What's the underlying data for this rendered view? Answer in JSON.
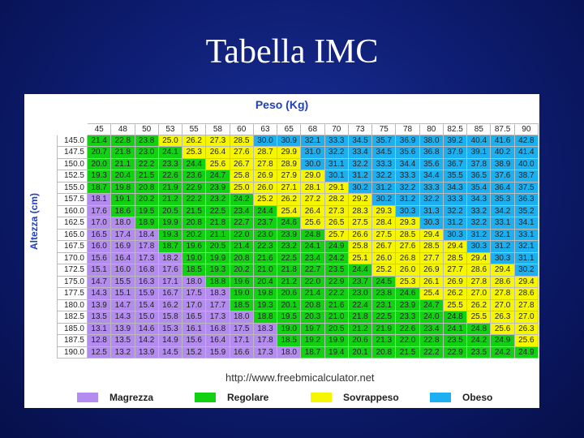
{
  "title": "Tabella IMC",
  "table": {
    "x_label": "Peso (Kg)",
    "y_label": "Altezza (cm)",
    "columns": [
      "45",
      "48",
      "50",
      "53",
      "55",
      "58",
      "60",
      "63",
      "65",
      "68",
      "70",
      "73",
      "75",
      "78",
      "80",
      "82.5",
      "85",
      "87.5",
      "90"
    ],
    "rows": [
      {
        "height": "145.0",
        "values": [
          "21.4",
          "22.8",
          "23.8",
          "25.0",
          "26.2",
          "27.3",
          "28.5",
          "30.0",
          "30.9",
          "32.1",
          "33.3",
          "34.5",
          "35.7",
          "36.9",
          "38.0",
          "39.2",
          "40.4",
          "41.6",
          "42.8"
        ],
        "classes": [
          1,
          1,
          1,
          2,
          2,
          2,
          2,
          3,
          3,
          3,
          3,
          3,
          3,
          3,
          3,
          3,
          3,
          3,
          3
        ]
      },
      {
        "height": "147.5",
        "values": [
          "20.7",
          "21.8",
          "23.0",
          "24.1",
          "25.3",
          "26.4",
          "27.6",
          "28.7",
          "29.9",
          "31.0",
          "32.2",
          "33.4",
          "34.5",
          "35.6",
          "36.8",
          "37.9",
          "39.1",
          "40.2",
          "41.4"
        ],
        "classes": [
          1,
          1,
          1,
          1,
          2,
          2,
          2,
          2,
          2,
          3,
          3,
          3,
          3,
          3,
          3,
          3,
          3,
          3,
          3
        ]
      },
      {
        "height": "150.0",
        "values": [
          "20.0",
          "21.1",
          "22.2",
          "23.3",
          "24.4",
          "25.6",
          "26.7",
          "27.8",
          "28.9",
          "30.0",
          "31.1",
          "32.2",
          "33.3",
          "34.4",
          "35.6",
          "36.7",
          "37.8",
          "38.9",
          "40.0"
        ],
        "classes": [
          1,
          1,
          1,
          1,
          1,
          2,
          2,
          2,
          2,
          3,
          3,
          3,
          3,
          3,
          3,
          3,
          3,
          3,
          3
        ]
      },
      {
        "height": "152.5",
        "values": [
          "19.3",
          "20.4",
          "21.5",
          "22.6",
          "23.6",
          "24.7",
          "25.8",
          "26.9",
          "27.9",
          "29.0",
          "30.1",
          "31.2",
          "32.2",
          "33.3",
          "34.4",
          "35.5",
          "36.5",
          "37.6",
          "38.7"
        ],
        "classes": [
          1,
          1,
          1,
          1,
          1,
          1,
          2,
          2,
          2,
          2,
          3,
          3,
          3,
          3,
          3,
          3,
          3,
          3,
          3
        ]
      },
      {
        "height": "155.0",
        "values": [
          "18.7",
          "19.8",
          "20.8",
          "21.9",
          "22.9",
          "23.9",
          "25.0",
          "26.0",
          "27.1",
          "28.1",
          "29.1",
          "30.2",
          "31.2",
          "32.2",
          "33.3",
          "34.3",
          "35.4",
          "36.4",
          "37.5"
        ],
        "classes": [
          1,
          1,
          1,
          1,
          1,
          1,
          2,
          2,
          2,
          2,
          2,
          3,
          3,
          3,
          3,
          3,
          3,
          3,
          3
        ]
      },
      {
        "height": "157.5",
        "values": [
          "18.1",
          "19.1",
          "20.2",
          "21.2",
          "22.2",
          "23.2",
          "24.2",
          "25.2",
          "26.2",
          "27.2",
          "28.2",
          "29.2",
          "30.2",
          "31.2",
          "32.2",
          "33.3",
          "34.3",
          "35.3",
          "36.3"
        ],
        "classes": [
          0,
          1,
          1,
          1,
          1,
          1,
          1,
          2,
          2,
          2,
          2,
          2,
          3,
          3,
          3,
          3,
          3,
          3,
          3
        ]
      },
      {
        "height": "160.0",
        "values": [
          "17.6",
          "18.6",
          "19.5",
          "20.5",
          "21.5",
          "22.5",
          "23.4",
          "24.4",
          "25.4",
          "26.4",
          "27.3",
          "28.3",
          "29.3",
          "30.3",
          "31.3",
          "32.2",
          "33.2",
          "34.2",
          "35.2"
        ],
        "classes": [
          0,
          1,
          1,
          1,
          1,
          1,
          1,
          1,
          2,
          2,
          2,
          2,
          2,
          3,
          3,
          3,
          3,
          3,
          3
        ]
      },
      {
        "height": "162.5",
        "values": [
          "17.0",
          "18.0",
          "18.9",
          "19.9",
          "20.8",
          "21.8",
          "22.7",
          "23.7",
          "24.6",
          "25.6",
          "26.5",
          "27.5",
          "28.4",
          "29.3",
          "30.3",
          "31.2",
          "32.2",
          "33.1",
          "34.1"
        ],
        "classes": [
          0,
          0,
          1,
          1,
          1,
          1,
          1,
          1,
          1,
          2,
          2,
          2,
          2,
          2,
          3,
          3,
          3,
          3,
          3
        ]
      },
      {
        "height": "165.0",
        "values": [
          "16.5",
          "17.4",
          "18.4",
          "19.3",
          "20.2",
          "21.1",
          "22.0",
          "23.0",
          "23.9",
          "24.8",
          "25.7",
          "26.6",
          "27.5",
          "28.5",
          "29.4",
          "30.3",
          "31.2",
          "32.1",
          "33.1"
        ],
        "classes": [
          0,
          0,
          0,
          1,
          1,
          1,
          1,
          1,
          1,
          1,
          2,
          2,
          2,
          2,
          2,
          3,
          3,
          3,
          3
        ]
      },
      {
        "height": "167.5",
        "values": [
          "16.0",
          "16.9",
          "17.8",
          "18.7",
          "19.6",
          "20.5",
          "21.4",
          "22.3",
          "23.2",
          "24.1",
          "24.9",
          "25.8",
          "26.7",
          "27.6",
          "28.5",
          "29.4",
          "30.3",
          "31.2",
          "32.1"
        ],
        "classes": [
          0,
          0,
          0,
          1,
          1,
          1,
          1,
          1,
          1,
          1,
          1,
          2,
          2,
          2,
          2,
          2,
          3,
          3,
          3
        ]
      },
      {
        "height": "170.0",
        "values": [
          "15.6",
          "16.4",
          "17.3",
          "18.2",
          "19.0",
          "19.9",
          "20.8",
          "21.6",
          "22.5",
          "23.4",
          "24.2",
          "25.1",
          "26.0",
          "26.8",
          "27.7",
          "28.5",
          "29.4",
          "30.3",
          "31.1"
        ],
        "classes": [
          0,
          0,
          0,
          0,
          1,
          1,
          1,
          1,
          1,
          1,
          1,
          2,
          2,
          2,
          2,
          2,
          2,
          3,
          3
        ]
      },
      {
        "height": "172.5",
        "values": [
          "15.1",
          "16.0",
          "16.8",
          "17.6",
          "18.5",
          "19.3",
          "20.2",
          "21.0",
          "21.8",
          "22.7",
          "23.5",
          "24.4",
          "25.2",
          "26.0",
          "26.9",
          "27.7",
          "28.6",
          "29.4",
          "30.2"
        ],
        "classes": [
          0,
          0,
          0,
          0,
          1,
          1,
          1,
          1,
          1,
          1,
          1,
          1,
          2,
          2,
          2,
          2,
          2,
          2,
          3
        ]
      },
      {
        "height": "175.0",
        "values": [
          "14.7",
          "15.5",
          "16.3",
          "17.1",
          "18.0",
          "18.8",
          "19.6",
          "20.4",
          "21.2",
          "22.0",
          "22.9",
          "23.7",
          "24.5",
          "25.3",
          "26.1",
          "26.9",
          "27.8",
          "28.6",
          "29.4"
        ],
        "classes": [
          0,
          0,
          0,
          0,
          0,
          1,
          1,
          1,
          1,
          1,
          1,
          1,
          1,
          2,
          2,
          2,
          2,
          2,
          2
        ]
      },
      {
        "height": "177.5",
        "values": [
          "14.3",
          "15.1",
          "15.9",
          "16.7",
          "17.5",
          "18.3",
          "19.0",
          "19.8",
          "20.6",
          "21.4",
          "22.2",
          "23.0",
          "23.8",
          "24.6",
          "25.4",
          "26.2",
          "27.0",
          "27.8",
          "28.6"
        ],
        "classes": [
          0,
          0,
          0,
          0,
          0,
          0,
          1,
          1,
          1,
          1,
          1,
          1,
          1,
          1,
          2,
          2,
          2,
          2,
          2
        ]
      },
      {
        "height": "180.0",
        "values": [
          "13.9",
          "14.7",
          "15.4",
          "16.2",
          "17.0",
          "17.7",
          "18.5",
          "19.3",
          "20.1",
          "20.8",
          "21.6",
          "22.4",
          "23.1",
          "23.9",
          "24.7",
          "25.5",
          "26.2",
          "27.0",
          "27.8"
        ],
        "classes": [
          0,
          0,
          0,
          0,
          0,
          0,
          1,
          1,
          1,
          1,
          1,
          1,
          1,
          1,
          1,
          2,
          2,
          2,
          2
        ]
      },
      {
        "height": "182.5",
        "values": [
          "13.5",
          "14.3",
          "15.0",
          "15.8",
          "16.5",
          "17.3",
          "18.0",
          "18.8",
          "19.5",
          "20.3",
          "21.0",
          "21.8",
          "22.5",
          "23.3",
          "24.0",
          "24.8",
          "25.5",
          "26.3",
          "27.0"
        ],
        "classes": [
          0,
          0,
          0,
          0,
          0,
          0,
          0,
          1,
          1,
          1,
          1,
          1,
          1,
          1,
          1,
          1,
          2,
          2,
          2
        ]
      },
      {
        "height": "185.0",
        "values": [
          "13.1",
          "13.9",
          "14.6",
          "15.3",
          "16.1",
          "16.8",
          "17.5",
          "18.3",
          "19.0",
          "19.7",
          "20.5",
          "21.2",
          "21.9",
          "22.6",
          "23.4",
          "24.1",
          "24.8",
          "25.6",
          "26.3"
        ],
        "classes": [
          0,
          0,
          0,
          0,
          0,
          0,
          0,
          0,
          1,
          1,
          1,
          1,
          1,
          1,
          1,
          1,
          1,
          2,
          2
        ]
      },
      {
        "height": "187.5",
        "values": [
          "12.8",
          "13.5",
          "14.2",
          "14.9",
          "15.6",
          "16.4",
          "17.1",
          "17.8",
          "18.5",
          "19.2",
          "19.9",
          "20.6",
          "21.3",
          "22.0",
          "22.8",
          "23.5",
          "24.2",
          "24.9",
          "25.6"
        ],
        "classes": [
          0,
          0,
          0,
          0,
          0,
          0,
          0,
          0,
          1,
          1,
          1,
          1,
          1,
          1,
          1,
          1,
          1,
          1,
          2
        ]
      },
      {
        "height": "190.0",
        "values": [
          "12.5",
          "13.2",
          "13.9",
          "14.5",
          "15.2",
          "15.9",
          "16.6",
          "17.3",
          "18.0",
          "18.7",
          "19.4",
          "20.1",
          "20.8",
          "21.5",
          "22.2",
          "22.9",
          "23.5",
          "24.2",
          "24.9"
        ],
        "classes": [
          0,
          0,
          0,
          0,
          0,
          0,
          0,
          0,
          0,
          1,
          1,
          1,
          1,
          1,
          1,
          1,
          1,
          1,
          1
        ]
      }
    ]
  },
  "source": "http://www.freebmicalculator.net",
  "legend": [
    {
      "label": "Magrezza",
      "color": "#b48cf0"
    },
    {
      "label": "Regolare",
      "color": "#12d012"
    },
    {
      "label": "Sovrappeso",
      "color": "#f6f600"
    },
    {
      "label": "Obeso",
      "color": "#1cb0f0"
    }
  ]
}
